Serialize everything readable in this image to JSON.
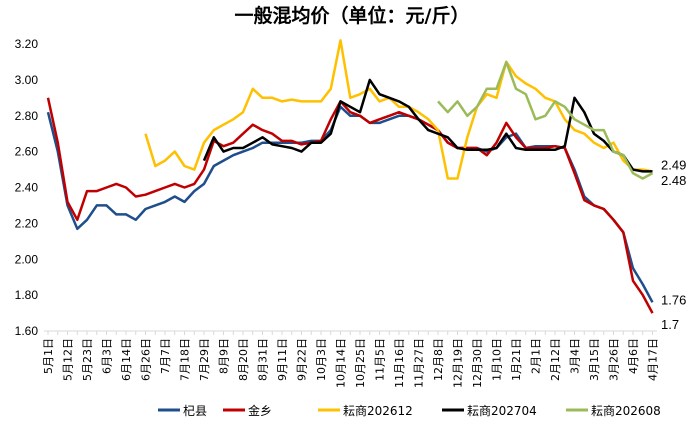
{
  "chart_data": {
    "type": "line",
    "title": "一般混均价（单位：元/斤）",
    "xlabel": "",
    "ylabel": "",
    "ylim": [
      1.6,
      3.2
    ],
    "yticks": [
      "1.60",
      "1.80",
      "2.00",
      "2.20",
      "2.40",
      "2.60",
      "2.80",
      "3.00",
      "3.20"
    ],
    "grid": false,
    "legend_position": "bottom",
    "tick_labels": [
      "5月1日",
      "5月12日",
      "5月23日",
      "6月3日",
      "6月14日",
      "6月26日",
      "7月7日",
      "7月18日",
      "7月29日",
      "8月9日",
      "8月20日",
      "8月31日",
      "9月11日",
      "9月22日",
      "10月3日",
      "10月14日",
      "10月25日",
      "11月5日",
      "11月16日",
      "11月27日",
      "12月8日",
      "12月19日",
      "12月30日",
      "1月10日",
      "1月21日",
      "2月1日",
      "2月12日",
      "3月4日",
      "3月15日",
      "3月26日",
      "4月6日",
      "4月17日"
    ],
    "x": [
      "5月1日",
      "5月6日",
      "5月12日",
      "5月17日",
      "5月23日",
      "5月28日",
      "6月3日",
      "6月8日",
      "6月14日",
      "6月20日",
      "6月26日",
      "7月1日",
      "7月7日",
      "7月12日",
      "7月18日",
      "7月23日",
      "7月29日",
      "8月3日",
      "8月9日",
      "8月14日",
      "8月20日",
      "8月25日",
      "8月31日",
      "9月5日",
      "9月11日",
      "9月16日",
      "9月22日",
      "9月27日",
      "10月3日",
      "10月8日",
      "10月14日",
      "10月19日",
      "10月25日",
      "10月30日",
      "11月5日",
      "11月10日",
      "11月16日",
      "11月21日",
      "11月27日",
      "12月2日",
      "12月8日",
      "12月13日",
      "12月19日",
      "12月24日",
      "12月30日",
      "1月4日",
      "1月10日",
      "1月15日",
      "1月21日",
      "1月26日",
      "2月1日",
      "2月6日",
      "2月12日",
      "2月22日",
      "3月4日",
      "3月9日",
      "3月15日",
      "3月20日",
      "3月26日",
      "3月31日",
      "4月6日",
      "4月11日",
      "4月17日"
    ],
    "series": [
      {
        "name": "杞县",
        "color": "#1F4E8C",
        "end_label": "1.76",
        "values": [
          2.82,
          2.6,
          2.3,
          2.17,
          2.22,
          2.3,
          2.3,
          2.25,
          2.25,
          2.22,
          2.28,
          2.3,
          2.32,
          2.35,
          2.32,
          2.38,
          2.42,
          2.52,
          2.55,
          2.58,
          2.6,
          2.62,
          2.65,
          2.65,
          2.65,
          2.65,
          2.65,
          2.66,
          2.66,
          2.72,
          2.85,
          2.8,
          2.8,
          2.76,
          2.76,
          2.78,
          2.8,
          2.8,
          2.78,
          2.75,
          2.72,
          2.65,
          2.62,
          2.62,
          2.62,
          2.6,
          2.62,
          2.68,
          2.7,
          2.62,
          2.63,
          2.63,
          2.63,
          2.62,
          2.5,
          2.35,
          2.3,
          2.28,
          2.22,
          2.15,
          1.95,
          1.86,
          1.76
        ]
      },
      {
        "name": "金乡",
        "color": "#C00000",
        "end_label": "1.7",
        "values": [
          2.9,
          2.65,
          2.32,
          2.22,
          2.38,
          2.38,
          2.4,
          2.42,
          2.4,
          2.35,
          2.36,
          2.38,
          2.4,
          2.42,
          2.4,
          2.42,
          2.5,
          2.66,
          2.63,
          2.65,
          2.7,
          2.75,
          2.72,
          2.7,
          2.66,
          2.66,
          2.64,
          2.65,
          2.66,
          2.78,
          2.88,
          2.82,
          2.8,
          2.76,
          2.78,
          2.8,
          2.82,
          2.8,
          2.78,
          2.75,
          2.72,
          2.65,
          2.62,
          2.62,
          2.62,
          2.58,
          2.65,
          2.76,
          2.68,
          2.62,
          2.62,
          2.62,
          2.63,
          2.62,
          2.48,
          2.33,
          2.3,
          2.28,
          2.22,
          2.15,
          1.88,
          1.8,
          1.7
        ]
      },
      {
        "name": "耘商202612",
        "color": "#FFC000",
        "end_label": "2.49",
        "values": [
          null,
          null,
          null,
          null,
          null,
          null,
          null,
          null,
          null,
          null,
          2.7,
          2.52,
          2.55,
          2.6,
          2.52,
          2.5,
          2.65,
          2.72,
          2.75,
          2.78,
          2.82,
          2.95,
          2.9,
          2.9,
          2.88,
          2.89,
          2.88,
          2.88,
          2.88,
          2.95,
          3.22,
          2.9,
          2.92,
          2.95,
          2.88,
          2.9,
          2.85,
          2.85,
          2.82,
          2.78,
          2.72,
          2.45,
          2.45,
          2.68,
          2.85,
          2.92,
          2.9,
          3.1,
          3.02,
          2.98,
          2.95,
          2.9,
          2.88,
          2.78,
          2.72,
          2.7,
          2.65,
          2.62,
          2.65,
          2.55,
          2.5,
          2.5,
          2.49
        ]
      },
      {
        "name": "耘商202704",
        "color": "#000000",
        "end_label": "",
        "values": [
          null,
          null,
          null,
          null,
          null,
          null,
          null,
          null,
          null,
          null,
          null,
          null,
          null,
          null,
          null,
          null,
          2.55,
          2.68,
          2.6,
          2.62,
          2.62,
          2.65,
          2.68,
          2.64,
          2.63,
          2.62,
          2.6,
          2.65,
          2.65,
          2.7,
          2.88,
          2.85,
          2.82,
          3.0,
          2.92,
          2.9,
          2.88,
          2.85,
          2.78,
          2.72,
          2.7,
          2.68,
          2.62,
          2.61,
          2.61,
          2.61,
          2.62,
          2.7,
          2.62,
          2.61,
          2.61,
          2.61,
          2.61,
          2.63,
          2.9,
          2.82,
          2.7,
          2.66,
          2.6,
          2.58,
          2.5,
          2.49,
          2.49
        ]
      },
      {
        "name": "耘商202608",
        "color": "#9BBB59",
        "end_label": "2.48",
        "values": [
          null,
          null,
          null,
          null,
          null,
          null,
          null,
          null,
          null,
          null,
          null,
          null,
          null,
          null,
          null,
          null,
          null,
          null,
          null,
          null,
          null,
          null,
          null,
          null,
          null,
          null,
          null,
          null,
          null,
          null,
          null,
          null,
          null,
          null,
          null,
          null,
          null,
          null,
          null,
          null,
          2.88,
          2.82,
          2.88,
          2.8,
          2.85,
          2.95,
          2.95,
          3.1,
          2.95,
          2.92,
          2.78,
          2.8,
          2.88,
          2.85,
          2.78,
          2.75,
          2.72,
          2.72,
          2.6,
          2.58,
          2.48,
          2.45,
          2.48
        ]
      }
    ]
  }
}
